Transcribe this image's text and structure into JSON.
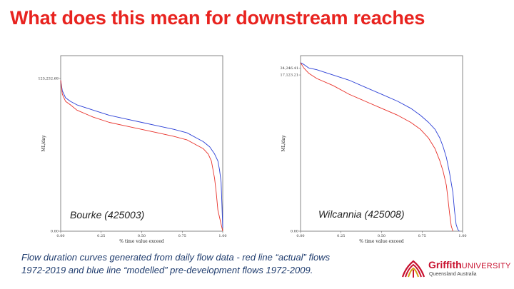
{
  "slide": {
    "title": "What does this mean for downstream reaches",
    "caption_line1": "Flow duration curves generated from daily flow data - red line “actual” flows",
    "caption_line2": "1972-2019 and blue line “modelled” pre-development flows 1972-2009."
  },
  "logo": {
    "brand_bold": "Griffith",
    "brand_rest": "UNIVERSITY",
    "location": "Queensland Australia",
    "colors": {
      "red": "#c8102e",
      "gold": "#d4a017"
    }
  },
  "colors": {
    "title": "#e8231f",
    "actual": "#e8312a",
    "modelled": "#2b3fd6",
    "caption": "#1f3c6e"
  },
  "chart_data": [
    {
      "type": "line",
      "station": "Bourke (425003)",
      "xlabel": "% time value exceed",
      "ylabel": "ML/day",
      "xlim": [
        0,
        1
      ],
      "x_ticks": [
        "0.00",
        "0.25",
        "0.50",
        "0.75",
        "1.00"
      ],
      "y_ticks": [
        "0.00",
        "125,232.68"
      ],
      "y_tick_values": [
        0,
        0.87
      ],
      "grid": false,
      "series": [
        {
          "color": "#2b3fd6",
          "x": [
            0,
            0.01,
            0.03,
            0.06,
            0.1,
            0.2,
            0.3,
            0.4,
            0.5,
            0.6,
            0.7,
            0.78,
            0.84,
            0.88,
            0.92,
            0.95,
            0.97,
            0.98,
            0.99,
            0.995,
            1.0
          ],
          "y": [
            0.86,
            0.8,
            0.76,
            0.74,
            0.72,
            0.69,
            0.66,
            0.64,
            0.62,
            0.6,
            0.58,
            0.56,
            0.53,
            0.51,
            0.48,
            0.44,
            0.4,
            0.35,
            0.28,
            0.15,
            0.02
          ]
        },
        {
          "color": "#e8312a",
          "x": [
            0,
            0.01,
            0.03,
            0.06,
            0.1,
            0.2,
            0.3,
            0.4,
            0.5,
            0.6,
            0.7,
            0.78,
            0.84,
            0.88,
            0.91,
            0.93,
            0.94,
            0.95,
            0.96,
            0.97,
            1.0
          ],
          "y": [
            0.86,
            0.78,
            0.74,
            0.72,
            0.69,
            0.65,
            0.62,
            0.6,
            0.58,
            0.56,
            0.54,
            0.52,
            0.49,
            0.47,
            0.44,
            0.4,
            0.35,
            0.3,
            0.22,
            0.12,
            0.0
          ]
        }
      ]
    },
    {
      "type": "line",
      "station": "Wilcannia (425008)",
      "xlabel": "% time value exceed",
      "ylabel": "ML/day",
      "xlim": [
        0,
        1
      ],
      "x_ticks": [
        "0.00",
        "0.25",
        "0.50",
        "0.75",
        "1.00"
      ],
      "y_ticks": [
        "0.00",
        "17,123.21",
        "34,246.41"
      ],
      "y_tick_values": [
        0,
        0.89,
        0.93
      ],
      "grid": false,
      "series": [
        {
          "color": "#2b3fd6",
          "x": [
            0,
            0.02,
            0.05,
            0.1,
            0.2,
            0.3,
            0.4,
            0.5,
            0.6,
            0.68,
            0.74,
            0.79,
            0.83,
            0.86,
            0.88,
            0.9,
            0.92,
            0.94,
            0.95,
            0.96,
            0.97,
            0.98
          ],
          "y": [
            0.96,
            0.95,
            0.93,
            0.92,
            0.89,
            0.86,
            0.82,
            0.78,
            0.74,
            0.7,
            0.66,
            0.62,
            0.58,
            0.53,
            0.48,
            0.42,
            0.33,
            0.22,
            0.12,
            0.04,
            0.01,
            0.0
          ]
        },
        {
          "color": "#e8312a",
          "x": [
            0,
            0.02,
            0.05,
            0.1,
            0.2,
            0.3,
            0.4,
            0.5,
            0.6,
            0.68,
            0.74,
            0.79,
            0.83,
            0.86,
            0.88,
            0.9,
            0.91,
            0.92,
            0.93,
            0.94
          ],
          "y": [
            0.96,
            0.93,
            0.9,
            0.87,
            0.83,
            0.78,
            0.74,
            0.7,
            0.66,
            0.62,
            0.58,
            0.53,
            0.47,
            0.4,
            0.34,
            0.26,
            0.18,
            0.1,
            0.03,
            0.0
          ]
        }
      ]
    }
  ]
}
